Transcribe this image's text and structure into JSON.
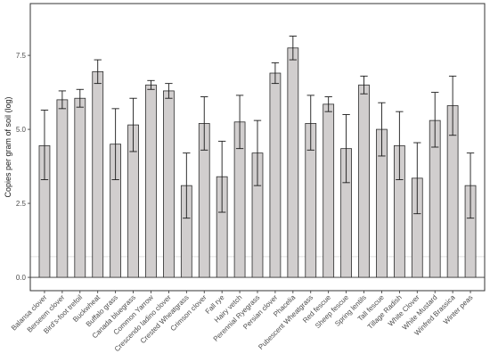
{
  "chart_data": {
    "type": "bar",
    "title": "",
    "xlabel": "",
    "ylabel": "Copies per gram of soil (log)",
    "ylim": [
      -0.45,
      9.25
    ],
    "yticks": [
      0.0,
      2.5,
      5.0,
      7.5
    ],
    "ytick_labels": [
      "0.0",
      "2.5",
      "5.0",
      "7.5"
    ],
    "reference_line": 0.7,
    "grid": false,
    "legend": "none",
    "colors": {
      "bar_fill": "#d1cece",
      "bar_stroke": "#2b2b2b",
      "error_bar": "#1a1a1a",
      "panel_border": "#333333",
      "reference_line": "#e0e0e0"
    },
    "categories": [
      "Balansa clover",
      "Berseem clover",
      "Bird's-foot trefoil",
      "Buckwheat",
      "Buffalo grass",
      "Canada bluegrass",
      "Common Yarrow",
      "Crescendo ladino clover",
      "Crested Wheatgrass",
      "Crimson clover",
      "Fall rye",
      "Hairy vetch",
      "Perennial Ryegrass",
      "Persian clover",
      "Phacelia",
      "Pubescent Wheatgrass",
      "Red fescue",
      "Sheep fescue",
      "Spring lentils",
      "Tall fescue",
      "Tillage Radish",
      "White Clover",
      "White Mustard",
      "Winfred Brassica",
      "Winter peas"
    ],
    "values": [
      4.45,
      6.0,
      6.05,
      6.95,
      4.5,
      5.15,
      6.5,
      6.3,
      3.1,
      5.2,
      3.4,
      5.25,
      4.2,
      6.9,
      7.75,
      5.2,
      5.85,
      4.35,
      6.5,
      5.0,
      4.45,
      3.35,
      5.3,
      5.8,
      3.1
    ],
    "error_low": [
      3.3,
      5.7,
      5.75,
      6.55,
      3.3,
      4.25,
      6.35,
      6.05,
      2.0,
      4.3,
      2.2,
      4.35,
      3.1,
      6.55,
      7.35,
      4.3,
      5.6,
      3.2,
      6.2,
      4.1,
      3.3,
      2.15,
      4.4,
      4.8,
      2.0
    ],
    "error_high": [
      5.65,
      6.3,
      6.35,
      7.35,
      5.7,
      6.05,
      6.65,
      6.55,
      4.2,
      6.1,
      4.6,
      6.15,
      5.3,
      7.25,
      8.15,
      6.15,
      6.1,
      5.5,
      6.8,
      5.9,
      5.6,
      4.55,
      6.25,
      6.8,
      4.2
    ]
  }
}
